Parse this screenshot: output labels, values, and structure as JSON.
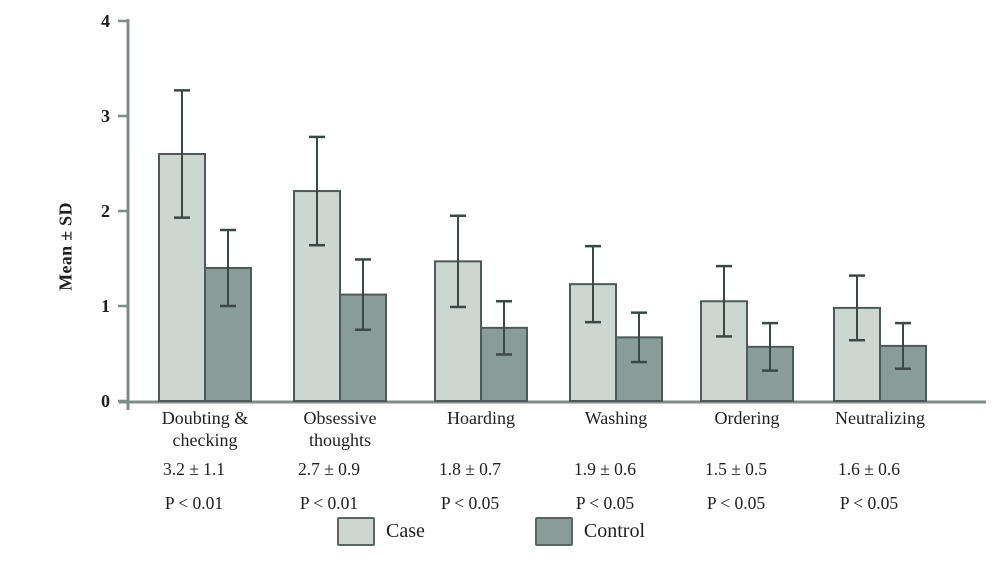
{
  "chart_data": {
    "type": "bar",
    "title": "",
    "ylabel": "Mean ± SD",
    "xlabel": "",
    "ylim": [
      0,
      4
    ],
    "yticks": [
      0,
      1,
      2,
      3,
      4
    ],
    "grid": false,
    "categories": [
      [
        "Doubting &",
        "checking"
      ],
      [
        "Obsessive",
        "thoughts"
      ],
      [
        "Hoarding"
      ],
      [
        "Washing"
      ],
      [
        "Ordering"
      ],
      [
        "Neutralizing"
      ]
    ],
    "series": [
      {
        "name": "Case",
        "fill": "#cdd7d2",
        "values": [
          2.6,
          2.21,
          1.47,
          1.23,
          1.05,
          0.98
        ],
        "errors": [
          0.67,
          0.57,
          0.48,
          0.4,
          0.37,
          0.34
        ]
      },
      {
        "name": "Control",
        "fill": "#8a9c97",
        "values": [
          1.4,
          1.12,
          0.77,
          0.67,
          0.57,
          0.58
        ],
        "errors": [
          0.4,
          0.37,
          0.28,
          0.26,
          0.25,
          0.24
        ]
      }
    ],
    "annotations": {
      "mean_sd": [
        "3.2 ± 1.1",
        "2.7 ± 0.9",
        "1.8 ± 0.7",
        "1.9 ± 0.6",
        "1.5 ± 0.5",
        "1.6 ± 0.6"
      ],
      "p_values": [
        "P < 0.01",
        "P < 0.01",
        "P < 0.05",
        "P < 0.05",
        "P < 0.05",
        "P < 0.05"
      ]
    },
    "legend": {
      "entries": [
        "Case",
        "Control"
      ],
      "position": "bottom"
    }
  },
  "style": {
    "bar_border": "#4e5a59",
    "error_bar": "#3c4846",
    "axis": "#7f8d89",
    "text": "#1e1e1e",
    "background": "#ffffff"
  }
}
